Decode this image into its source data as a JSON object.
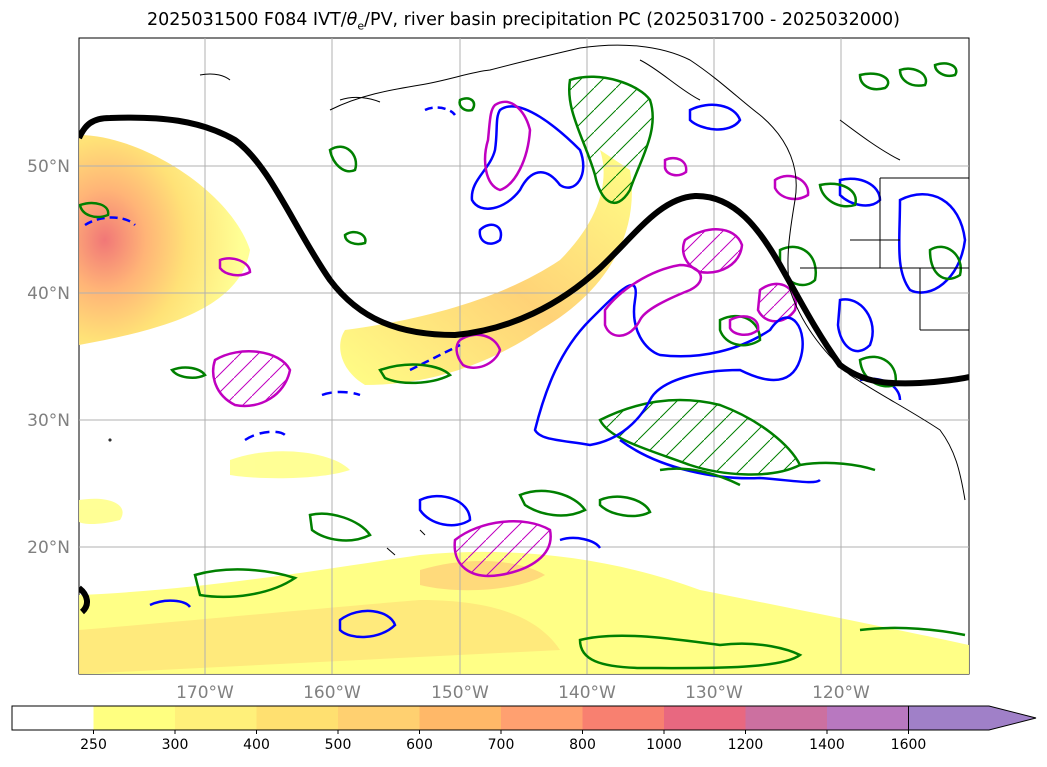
{
  "title": {
    "prefix": "2025031500 F084 IVT/",
    "theta": "θ",
    "sub": "e",
    "suffix": "/PV, river basin precipitation PC (2025031700 - 2025032000)"
  },
  "map": {
    "lat_ticks": [
      {
        "label": "50°N",
        "lat": 50
      },
      {
        "label": "40°N",
        "lat": 40
      },
      {
        "label": "30°N",
        "lat": 30
      },
      {
        "label": "20°N",
        "lat": 20
      }
    ],
    "lon_ticks": [
      {
        "label": "170°W",
        "lon": -170
      },
      {
        "label": "160°W",
        "lon": -160
      },
      {
        "label": "150°W",
        "lon": -150
      },
      {
        "label": "140°W",
        "lon": -140
      },
      {
        "label": "130°W",
        "lon": -130
      },
      {
        "label": "120°W",
        "lon": -120
      }
    ],
    "lon_range": [
      -180,
      -110
    ],
    "lat_range": [
      10,
      60
    ],
    "colors": {
      "ivt_low": "#ffff80",
      "ivt_mid": "#ffcc66",
      "ivt_high": "#f06060",
      "theta_e": "#000000",
      "contour_blue": "#0000ff",
      "contour_green": "#008000",
      "contour_magenta": "#c000c0",
      "grid": "#b0b0b0",
      "coast": "#000000"
    }
  },
  "colorbar": {
    "labels": [
      "250",
      "300",
      "400",
      "500",
      "600",
      "700",
      "800",
      "1000",
      "1200",
      "1400",
      "1600"
    ],
    "colors": [
      "#ffffff",
      "#ffff80",
      "#fff07a",
      "#ffe070",
      "#ffd070",
      "#ffb868",
      "#ffa070",
      "#f88070",
      "#e86880",
      "#cc70a0",
      "#b878c0",
      "#a080c8"
    ]
  }
}
